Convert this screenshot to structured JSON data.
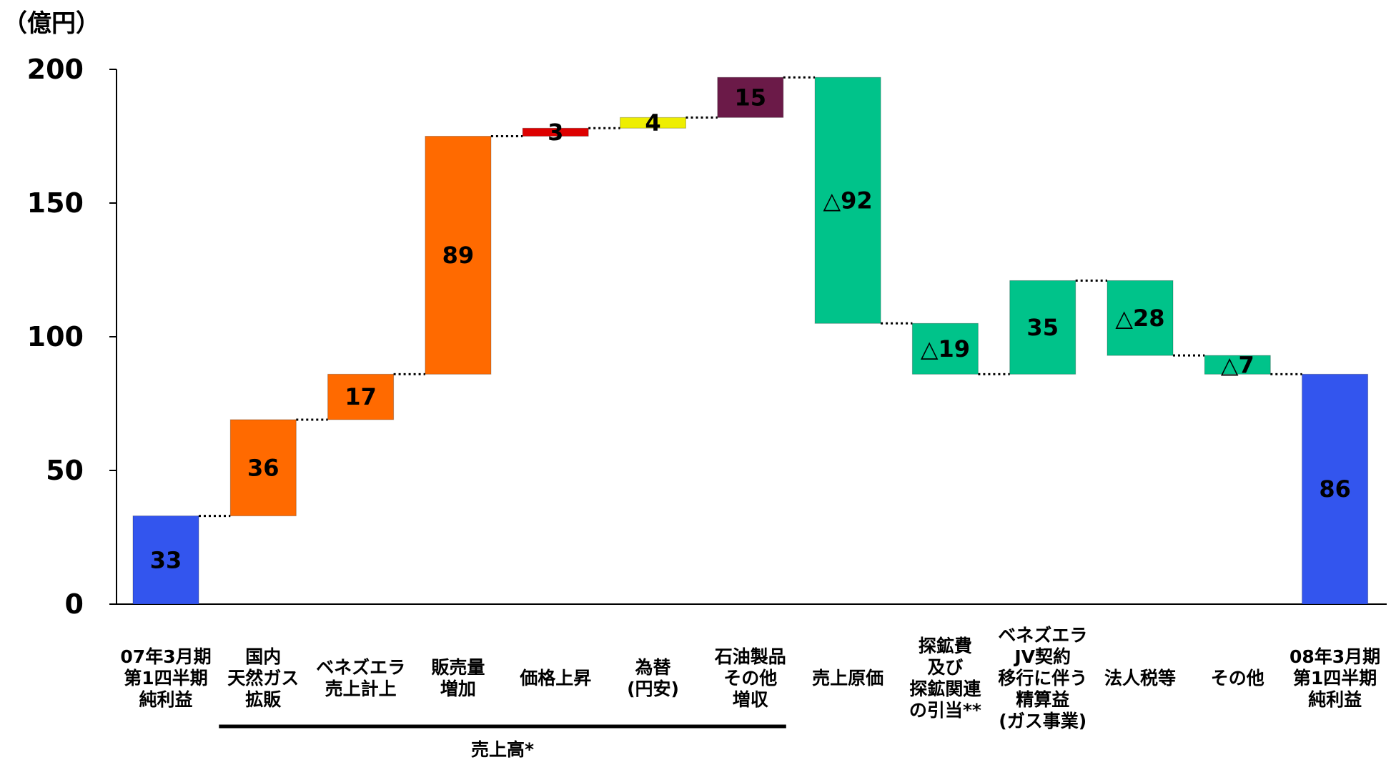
{
  "chart_data": {
    "type": "waterfall",
    "unit_label": "（億円）",
    "ylim": [
      0,
      200
    ],
    "yticks": [
      0,
      50,
      100,
      150,
      200
    ],
    "grid": false,
    "connectors": "dotted",
    "categories": [
      [
        "07年3月期",
        "第1四半期",
        "純利益"
      ],
      [
        "国内",
        "天然ガス",
        "拡販"
      ],
      [
        "ベネズエラ",
        "売上計上"
      ],
      [
        "販売量",
        "増加"
      ],
      [
        "価格上昇"
      ],
      [
        "為替",
        "(円安)"
      ],
      [
        "石油製品",
        "その他",
        "増収"
      ],
      [
        "売上原価"
      ],
      [
        "探鉱費",
        "及び",
        "探鉱関連",
        "の引当**"
      ],
      [
        "ベネズエラ",
        "JV契約",
        "移行に伴う",
        "精算益",
        "(ガス事業)"
      ],
      [
        "法人税等"
      ],
      [
        "その他"
      ],
      [
        "08年3月期",
        "第1四半期",
        "純利益"
      ]
    ],
    "bars": [
      {
        "kind": "total",
        "base": 0,
        "top": 33,
        "label": "33",
        "color": "#3355ee"
      },
      {
        "kind": "delta",
        "base": 33,
        "top": 69,
        "label": "36",
        "color": "#ff6a00"
      },
      {
        "kind": "delta",
        "base": 69,
        "top": 86,
        "label": "17",
        "color": "#ff6a00"
      },
      {
        "kind": "delta",
        "base": 86,
        "top": 175,
        "label": "89",
        "color": "#ff6a00"
      },
      {
        "kind": "delta",
        "base": 175,
        "top": 178,
        "label": "3",
        "color": "#dd0000"
      },
      {
        "kind": "delta",
        "base": 178,
        "top": 182,
        "label": "4",
        "color": "#eeee00"
      },
      {
        "kind": "delta",
        "base": 182,
        "top": 197,
        "label": "15",
        "color": "#6b1a48"
      },
      {
        "kind": "delta",
        "base": 105,
        "top": 197,
        "label": "△92",
        "color": "#00c38a"
      },
      {
        "kind": "delta",
        "base": 86,
        "top": 105,
        "label": "△19",
        "color": "#00c38a"
      },
      {
        "kind": "delta",
        "base": 86,
        "top": 121,
        "label": "35",
        "color": "#00c38a"
      },
      {
        "kind": "delta",
        "base": 93,
        "top": 121,
        "label": "△28",
        "color": "#00c38a"
      },
      {
        "kind": "delta",
        "base": 86,
        "top": 93,
        "label": "△7",
        "color": "#00c38a"
      },
      {
        "kind": "total",
        "base": 0,
        "top": 86,
        "label": "86",
        "color": "#3355ee"
      }
    ],
    "groups": [
      {
        "label": "売上高*",
        "from": 1,
        "to": 6
      }
    ]
  }
}
